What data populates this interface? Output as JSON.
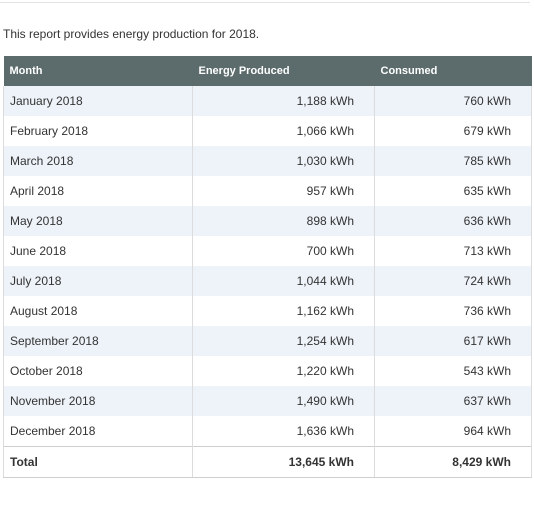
{
  "intro": "This report provides energy production for 2018.",
  "table": {
    "headers": [
      "Month",
      "Energy Produced",
      "Consumed"
    ],
    "rows": [
      [
        "January 2018",
        "1,188 kWh",
        "760 kWh"
      ],
      [
        "February 2018",
        "1,066 kWh",
        "679 kWh"
      ],
      [
        "March 2018",
        "1,030 kWh",
        "785 kWh"
      ],
      [
        "April 2018",
        "957 kWh",
        "635 kWh"
      ],
      [
        "May 2018",
        "898 kWh",
        "636 kWh"
      ],
      [
        "June 2018",
        "700 kWh",
        "713 kWh"
      ],
      [
        "July 2018",
        "1,044 kWh",
        "724 kWh"
      ],
      [
        "August 2018",
        "1,162 kWh",
        "736 kWh"
      ],
      [
        "September 2018",
        "1,254 kWh",
        "617 kWh"
      ],
      [
        "October 2018",
        "1,220 kWh",
        "543 kWh"
      ],
      [
        "November 2018",
        "1,490 kWh",
        "637 kWh"
      ],
      [
        "December 2018",
        "1,636 kWh",
        "964 kWh"
      ]
    ],
    "total": [
      "Total",
      "13,645 kWh",
      "8,429 kWh"
    ]
  }
}
